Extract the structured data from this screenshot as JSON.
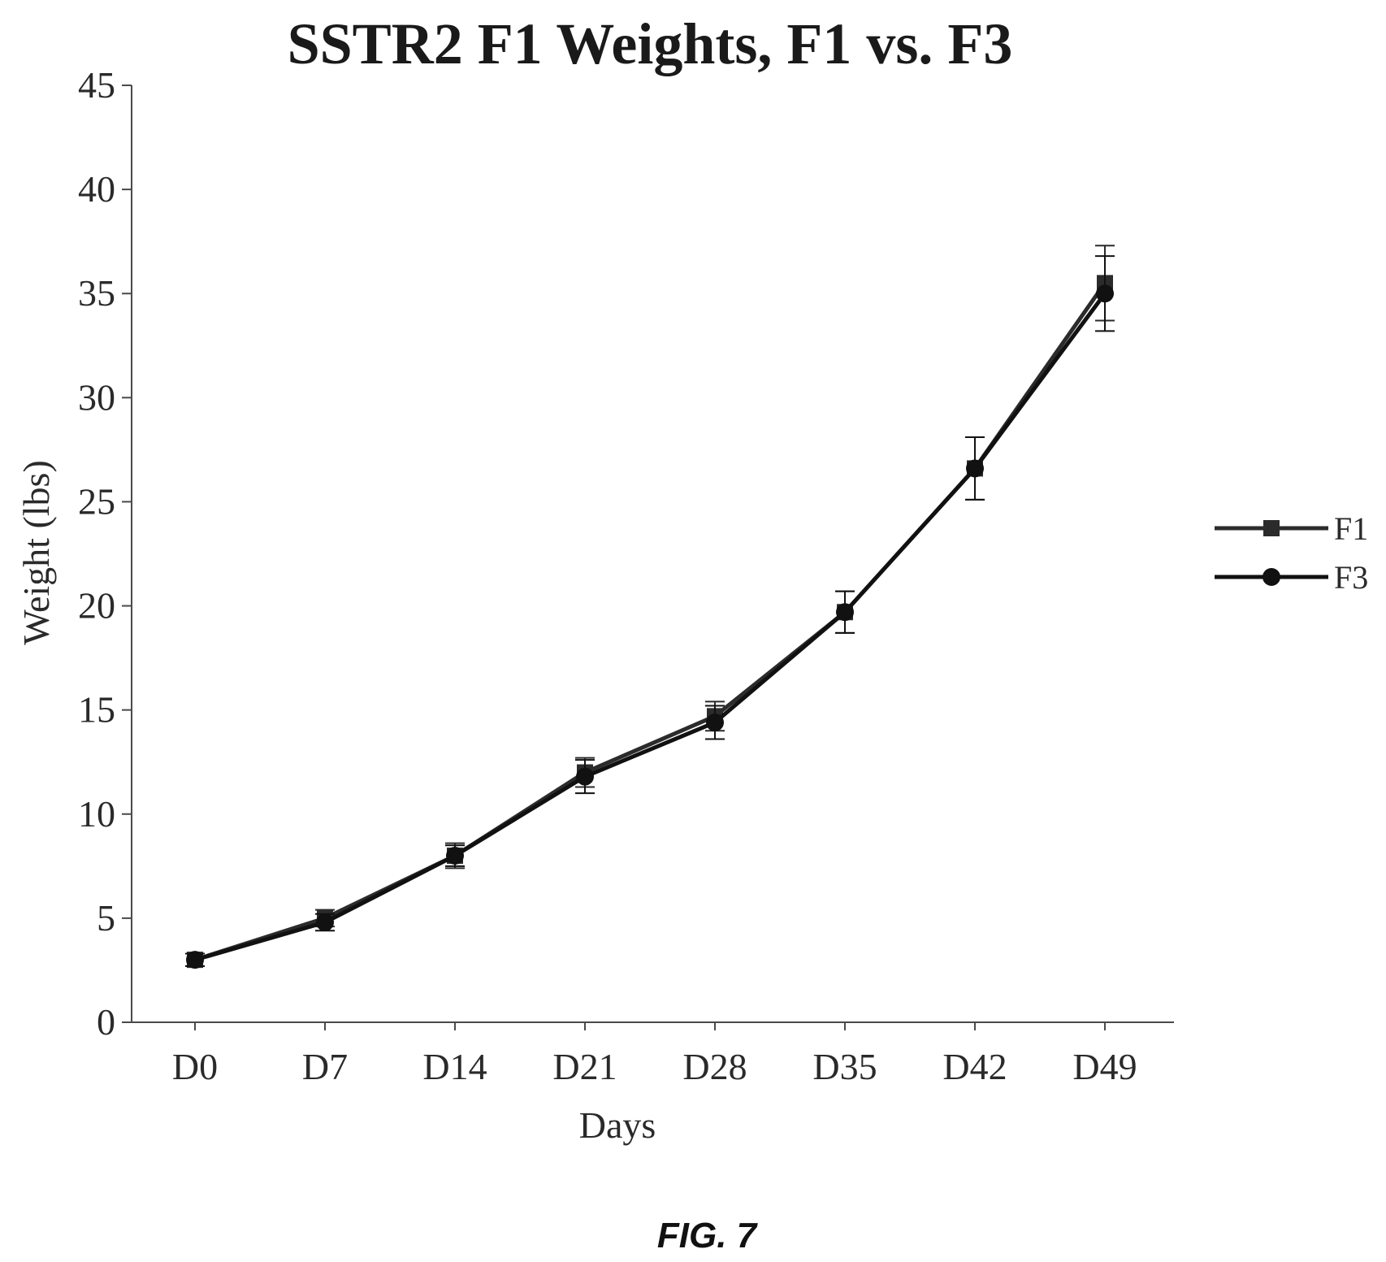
{
  "figure_label": "FIG. 7",
  "chart_data": {
    "type": "line",
    "title": "SSTR2 F1 Weights, F1 vs. F3",
    "xlabel": "Days",
    "ylabel": "Weight (lbs)",
    "categories": [
      "D0",
      "D7",
      "D14",
      "D21",
      "D28",
      "D35",
      "D42",
      "D49"
    ],
    "ylim": [
      0,
      45
    ],
    "yticks": [
      0,
      5,
      10,
      15,
      20,
      25,
      30,
      35,
      40,
      45
    ],
    "grid": false,
    "legend_position": "right",
    "series": [
      {
        "name": "F1",
        "color": "#2b2b2b",
        "marker": "square",
        "values": [
          3.0,
          5.0,
          8.0,
          12.0,
          14.7,
          19.7,
          26.6,
          35.5
        ],
        "errors": [
          0.3,
          0.4,
          0.6,
          0.7,
          0.7,
          1.0,
          1.5,
          1.8
        ]
      },
      {
        "name": "F3",
        "color": "#111111",
        "marker": "circle",
        "values": [
          3.0,
          4.8,
          8.0,
          11.8,
          14.4,
          19.7,
          26.6,
          35.0
        ],
        "errors": [
          0.3,
          0.4,
          0.5,
          0.8,
          0.8,
          1.0,
          1.5,
          1.8
        ]
      }
    ]
  }
}
